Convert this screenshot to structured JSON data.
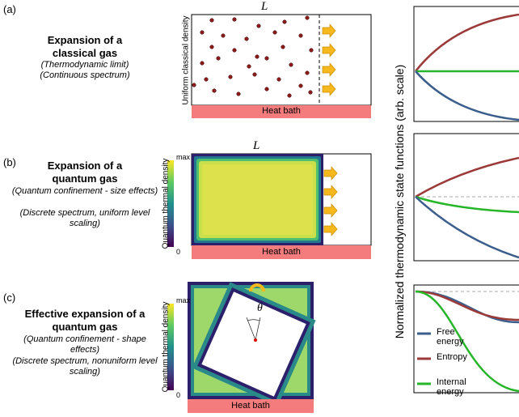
{
  "panels": [
    {
      "label": "(a)",
      "title": "Expansion of a classical gas",
      "notes": [
        "(Thermodynamic limit)",
        "(Continuous spectrum)"
      ],
      "length_label": "L",
      "density_label": "Uniform classical density",
      "bath_label": "Heat bath"
    },
    {
      "label": "(b)",
      "title": "Expansion of a quantum gas",
      "notes": [
        "(Quantum confinement - size effects)",
        "(Discrete spectrum, uniform level scaling)"
      ],
      "length_label": "L",
      "density_label": "Quantum thermal density",
      "colorbar_max": "max",
      "colorbar_min": "0",
      "bath_label": "Heat bath"
    },
    {
      "label": "(c)",
      "title": "Effective expansion of a quantum gas",
      "notes": [
        "(Quantum confinement - shape effects)",
        "(Discrete spectrum, nonuniform level scaling)"
      ],
      "angle_label": "θ",
      "density_label": "Quantum thermal density",
      "colorbar_max": "max",
      "colorbar_min": "0",
      "bath_label": "Heat bath"
    }
  ],
  "y_axis_label": "Normalized thermodynamic state functions (arb. scale)",
  "legend": [
    {
      "name": "Free energy",
      "color": "#3b5e8c"
    },
    {
      "name": "Entropy",
      "color": "#9c3a3a"
    },
    {
      "name": "Internal energy",
      "color": "#27b52a"
    }
  ]
}
